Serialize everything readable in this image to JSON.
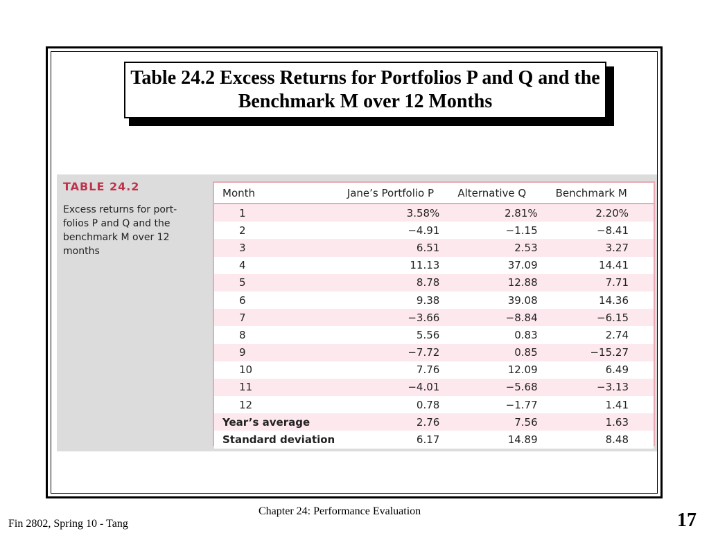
{
  "slide": {
    "title": "Table 24.2 Excess Returns for Portfolios P and Q and the Benchmark M over 12 Months"
  },
  "table": {
    "label": "TABLE 24.2",
    "description": "Excess returns for port-folios P and Q and the benchmark M over 12 months",
    "headers": [
      "Month",
      "Jane’s Portfolio P",
      "Alternative Q",
      "Benchmark M"
    ],
    "rows": [
      [
        "1",
        "3.58%",
        "2.81%",
        "2.20%"
      ],
      [
        "2",
        "−4.91",
        "−1.15",
        "−8.41"
      ],
      [
        "3",
        "6.51",
        "2.53",
        "3.27"
      ],
      [
        "4",
        "11.13",
        "37.09",
        "14.41"
      ],
      [
        "5",
        "8.78",
        "12.88",
        "7.71"
      ],
      [
        "6",
        "9.38",
        "39.08",
        "14.36"
      ],
      [
        "7",
        "−3.66",
        "−8.84",
        "−6.15"
      ],
      [
        "8",
        "5.56",
        "0.83",
        "2.74"
      ],
      [
        "9",
        "−7.72",
        "0.85",
        "−15.27"
      ],
      [
        "10",
        "7.76",
        "12.09",
        "6.49"
      ],
      [
        "11",
        "−4.01",
        "−5.68",
        "−3.13"
      ],
      [
        "12",
        "0.78",
        "−1.77",
        "1.41"
      ],
      [
        "Year’s average",
        "2.76",
        "7.56",
        "1.63"
      ],
      [
        "Standard deviation",
        "6.17",
        "14.89",
        "8.48"
      ]
    ]
  },
  "footer": {
    "chapter": "Chapter 24: Performance Evaluation",
    "course": "Fin 2802, Spring 10 - Tang",
    "page": "17"
  }
}
